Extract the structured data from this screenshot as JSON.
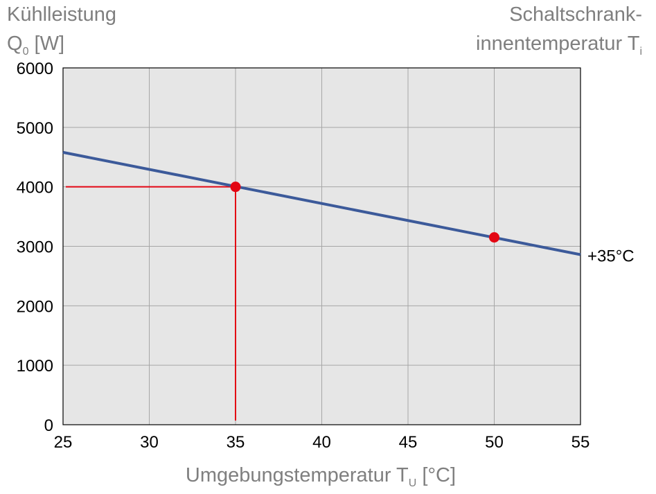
{
  "chart_data": {
    "type": "line",
    "ylabel_line1": "Kühlleistung",
    "ylabel_main": "Q",
    "ylabel_sub": "0",
    "ylabel_unit": " [W]",
    "right_label_line1": "Schaltschrank-",
    "right_label_main": "innentemperatur T",
    "right_label_sub": "i",
    "xlabel_main": "Umgebungstemperatur T",
    "xlabel_sub": "U",
    "xlabel_unit": " [°C]",
    "xlim": [
      25,
      55
    ],
    "ylim": [
      0,
      6000
    ],
    "x_ticks": [
      25,
      30,
      35,
      40,
      45,
      50,
      55
    ],
    "y_ticks": [
      0,
      1000,
      2000,
      3000,
      4000,
      5000,
      6000
    ],
    "grid": true,
    "series": [
      {
        "name": "+35°C",
        "color": "#3c5a9a",
        "x": [
          25,
          55
        ],
        "y": [
          4580,
          2860
        ]
      }
    ],
    "markers": [
      {
        "x": 35,
        "y": 4000,
        "color": "#e30613"
      },
      {
        "x": 50,
        "y": 3150,
        "color": "#e30613"
      }
    ],
    "reference_lines": {
      "color": "#e30613",
      "x": 35,
      "y": 4000
    },
    "plot_background": "#e6e6e6",
    "grid_color": "#a6a6a6"
  }
}
